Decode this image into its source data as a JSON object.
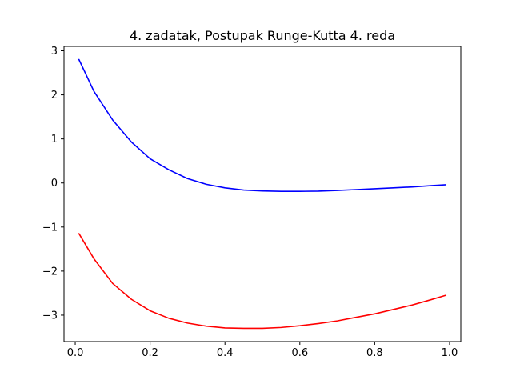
{
  "chart_data": {
    "type": "line",
    "title": "4. zadatak, Postupak Runge-Kutta 4. reda",
    "xlabel": "",
    "ylabel": "",
    "xlim": [
      -0.03,
      1.03
    ],
    "ylim": [
      -3.6,
      3.1
    ],
    "x_ticks": [
      0.0,
      0.2,
      0.4,
      0.6,
      0.8,
      1.0
    ],
    "x_tick_labels": [
      "0.0",
      "0.2",
      "0.4",
      "0.6",
      "0.8",
      "1.0"
    ],
    "y_ticks": [
      -3,
      -2,
      -1,
      0,
      1,
      2,
      3
    ],
    "y_tick_labels": [
      "−3",
      "−2",
      "−1",
      "0",
      "1",
      "2",
      "3"
    ],
    "grid": false,
    "series": [
      {
        "color": "#0000ff",
        "x": [
          0.01,
          0.05,
          0.1,
          0.15,
          0.2,
          0.25,
          0.3,
          0.35,
          0.4,
          0.45,
          0.5,
          0.55,
          0.6,
          0.65,
          0.7,
          0.75,
          0.8,
          0.85,
          0.9,
          0.95,
          0.99
        ],
        "values": [
          2.8,
          2.08,
          1.43,
          0.93,
          0.55,
          0.3,
          0.1,
          -0.03,
          -0.11,
          -0.16,
          -0.18,
          -0.19,
          -0.19,
          -0.185,
          -0.17,
          -0.15,
          -0.13,
          -0.11,
          -0.09,
          -0.06,
          -0.04
        ]
      },
      {
        "color": "#ff0000",
        "x": [
          0.01,
          0.05,
          0.1,
          0.15,
          0.2,
          0.25,
          0.3,
          0.35,
          0.4,
          0.45,
          0.5,
          0.55,
          0.6,
          0.65,
          0.7,
          0.75,
          0.8,
          0.85,
          0.9,
          0.95,
          0.99
        ],
        "values": [
          -1.15,
          -1.72,
          -2.28,
          -2.64,
          -2.9,
          -3.07,
          -3.18,
          -3.25,
          -3.29,
          -3.3,
          -3.3,
          -3.28,
          -3.24,
          -3.19,
          -3.13,
          -3.05,
          -2.97,
          -2.87,
          -2.77,
          -2.65,
          -2.55
        ]
      }
    ]
  }
}
